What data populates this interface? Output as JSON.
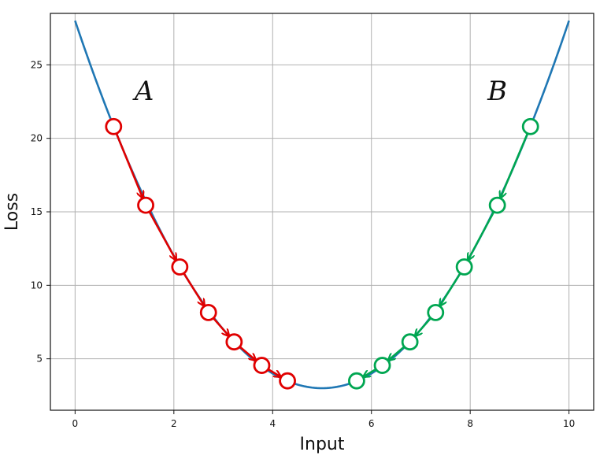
{
  "chart_data": {
    "type": "line",
    "xlabel": "Input",
    "ylabel": "Loss",
    "xlim": [
      -0.5,
      10.5
    ],
    "ylim": [
      1.5,
      28.5
    ],
    "x_ticks": [
      0,
      2,
      4,
      6,
      8,
      10
    ],
    "y_ticks": [
      5,
      10,
      15,
      20,
      25
    ],
    "x_tick_labels": [
      "0",
      "2",
      "4",
      "6",
      "8",
      "10"
    ],
    "y_tick_labels": [
      "5",
      "10",
      "15",
      "20",
      "25"
    ],
    "grid": true,
    "curve": {
      "formula": "y = (x - 5)^2 + 3",
      "x_range": [
        0,
        10
      ],
      "color": "#1f77b4"
    },
    "series": [
      {
        "label": "A",
        "color": "#e00000",
        "points": [
          {
            "x": 0.78,
            "y": 20.8
          },
          {
            "x": 1.43,
            "y": 15.45
          },
          {
            "x": 2.12,
            "y": 11.25
          },
          {
            "x": 2.7,
            "y": 8.15
          },
          {
            "x": 3.22,
            "y": 6.15
          },
          {
            "x": 3.78,
            "y": 4.55
          },
          {
            "x": 4.3,
            "y": 3.5
          }
        ]
      },
      {
        "label": "B",
        "color": "#00a651",
        "points": [
          {
            "x": 9.22,
            "y": 20.8
          },
          {
            "x": 8.55,
            "y": 15.45
          },
          {
            "x": 7.88,
            "y": 11.25
          },
          {
            "x": 7.3,
            "y": 8.15
          },
          {
            "x": 6.78,
            "y": 6.15
          },
          {
            "x": 6.22,
            "y": 4.55
          },
          {
            "x": 5.7,
            "y": 3.5
          }
        ]
      }
    ],
    "annotations": [
      {
        "text": "A",
        "x": 1.4,
        "y": 22.6
      },
      {
        "text": "B",
        "x": 8.55,
        "y": 22.6
      }
    ]
  }
}
